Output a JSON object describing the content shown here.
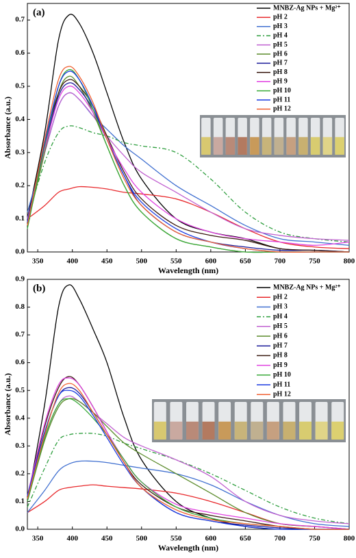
{
  "chart_data": [
    {
      "type": "line",
      "annotation": "(a)",
      "xlabel": "Wavelength (nm)",
      "ylabel": "Absorbance (a.u.)",
      "x": [
        335,
        360,
        380,
        395,
        410,
        430,
        450,
        475,
        500,
        550,
        600,
        650,
        700,
        750,
        800
      ],
      "xlim": [
        335,
        800
      ],
      "xticks": [
        350,
        400,
        450,
        500,
        550,
        600,
        650,
        700,
        750,
        800
      ],
      "ylim": [
        0,
        0.75
      ],
      "yticks": [
        {
          "value": 0,
          "label": "0.0"
        },
        0.1,
        0.2,
        0.3,
        0.4,
        0.5,
        0.6,
        0.7
      ],
      "legend": "upper right",
      "series": [
        {
          "name": "MNBZ-Ag NPs + Mg²⁺",
          "color": "#000000",
          "values": [
            0.1,
            0.36,
            0.64,
            0.715,
            0.69,
            0.6,
            0.48,
            0.33,
            0.22,
            0.1,
            0.06,
            0.04,
            0.01,
            0.005,
            0
          ]
        },
        {
          "name": "pH 2",
          "color": "#e8272a",
          "values": [
            0.1,
            0.14,
            0.18,
            0.19,
            0.197,
            0.195,
            0.19,
            0.18,
            0.175,
            0.16,
            0.12,
            0.07,
            0.03,
            0.015,
            0.01
          ]
        },
        {
          "name": "pH 3",
          "color": "#3f6fd0",
          "values": [
            0.12,
            0.3,
            0.44,
            0.48,
            0.46,
            0.41,
            0.37,
            0.32,
            0.28,
            0.2,
            0.14,
            0.08,
            0.04,
            0.03,
            0.02
          ]
        },
        {
          "name": "pH 4",
          "color": "#2e9e3e",
          "dash": "dash-dot",
          "values": [
            0.1,
            0.27,
            0.36,
            0.38,
            0.375,
            0.36,
            0.35,
            0.33,
            0.32,
            0.3,
            0.22,
            0.12,
            0.06,
            0.04,
            0.03
          ]
        },
        {
          "name": "pH 5",
          "color": "#c060d0",
          "values": [
            0.1,
            0.3,
            0.44,
            0.48,
            0.46,
            0.41,
            0.35,
            0.29,
            0.24,
            0.18,
            0.12,
            0.07,
            0.05,
            0.04,
            0.035
          ]
        },
        {
          "name": "pH 6",
          "color": "#5a8a2a",
          "values": [
            0.08,
            0.3,
            0.48,
            0.53,
            0.5,
            0.42,
            0.32,
            0.2,
            0.12,
            0.04,
            0.015,
            0,
            0,
            0,
            0
          ]
        },
        {
          "name": "pH 7",
          "color": "#1a1a9a",
          "values": [
            0.09,
            0.32,
            0.47,
            0.51,
            0.49,
            0.43,
            0.34,
            0.23,
            0.14,
            0.06,
            0.03,
            0.015,
            0.005,
            0.005,
            0
          ]
        },
        {
          "name": "pH 8",
          "color": "#3a1a10",
          "values": [
            0.09,
            0.33,
            0.48,
            0.52,
            0.5,
            0.44,
            0.35,
            0.24,
            0.16,
            0.08,
            0.05,
            0.035,
            0.01,
            0.005,
            0
          ]
        },
        {
          "name": "pH 9",
          "color": "#e040e0",
          "values": [
            0.09,
            0.31,
            0.46,
            0.5,
            0.48,
            0.42,
            0.34,
            0.25,
            0.18,
            0.1,
            0.06,
            0.04,
            0.03,
            0.02,
            0.03
          ]
        },
        {
          "name": "pH 10",
          "color": "#3aaa3a",
          "values": [
            0.07,
            0.32,
            0.5,
            0.55,
            0.52,
            0.43,
            0.32,
            0.2,
            0.12,
            0.04,
            0.015,
            0,
            0,
            0,
            0
          ]
        },
        {
          "name": "pH 11",
          "color": "#1a3ae0",
          "values": [
            0.09,
            0.33,
            0.5,
            0.545,
            0.52,
            0.44,
            0.34,
            0.23,
            0.15,
            0.07,
            0.03,
            0.01,
            0,
            0,
            0
          ]
        },
        {
          "name": "pH 12",
          "color": "#f06030",
          "values": [
            0.08,
            0.34,
            0.52,
            0.56,
            0.53,
            0.45,
            0.34,
            0.22,
            0.14,
            0.06,
            0.03,
            0.01,
            0,
            0,
            0
          ]
        }
      ]
    },
    {
      "type": "line",
      "annotation": "(b)",
      "xlabel": "Wavelength (nm)",
      "ylabel": "Absorbance (a.u.)",
      "x": [
        335,
        360,
        380,
        395,
        410,
        430,
        450,
        475,
        500,
        550,
        600,
        650,
        700,
        750,
        800
      ],
      "xlim": [
        335,
        800
      ],
      "xticks": [
        350,
        400,
        450,
        500,
        550,
        600,
        650,
        700,
        750,
        800
      ],
      "ylim": [
        0,
        0.9
      ],
      "yticks": [
        {
          "value": 0,
          "label": "0.0"
        },
        0.1,
        0.2,
        0.3,
        0.4,
        0.5,
        0.6,
        0.7,
        0.8,
        0.9
      ],
      "legend": "upper right",
      "series": [
        {
          "name": "MNBZ-Ag NPs + Mg²⁺",
          "color": "#000000",
          "values": [
            0.1,
            0.45,
            0.8,
            0.88,
            0.83,
            0.72,
            0.6,
            0.4,
            0.25,
            0.1,
            0.04,
            0.01,
            0,
            0,
            0
          ]
        },
        {
          "name": "pH 2",
          "color": "#e8272a",
          "values": [
            0.06,
            0.1,
            0.14,
            0.15,
            0.155,
            0.16,
            0.155,
            0.15,
            0.145,
            0.13,
            0.1,
            0.06,
            0.02,
            0.01,
            0
          ]
        },
        {
          "name": "pH 3",
          "color": "#3f6fd0",
          "values": [
            0.06,
            0.14,
            0.21,
            0.235,
            0.245,
            0.245,
            0.24,
            0.23,
            0.22,
            0.2,
            0.16,
            0.1,
            0.05,
            0.02,
            0.01
          ]
        },
        {
          "name": "pH 4",
          "color": "#2e9e3e",
          "dash": "dash-dot",
          "values": [
            0.08,
            0.22,
            0.32,
            0.34,
            0.345,
            0.345,
            0.335,
            0.31,
            0.29,
            0.25,
            0.2,
            0.14,
            0.08,
            0.04,
            0.02
          ]
        },
        {
          "name": "pH 5",
          "color": "#c060d0",
          "values": [
            0.1,
            0.33,
            0.45,
            0.48,
            0.46,
            0.42,
            0.38,
            0.33,
            0.3,
            0.25,
            0.19,
            0.1,
            0.05,
            0.03,
            0.02
          ]
        },
        {
          "name": "pH 6",
          "color": "#5a8a2a",
          "values": [
            0.1,
            0.32,
            0.44,
            0.47,
            0.46,
            0.42,
            0.37,
            0.31,
            0.27,
            0.2,
            0.13,
            0.06,
            0.02,
            0.01,
            0
          ]
        },
        {
          "name": "pH 7",
          "color": "#1a1a9a",
          "values": [
            0.12,
            0.35,
            0.48,
            0.51,
            0.49,
            0.42,
            0.34,
            0.24,
            0.15,
            0.06,
            0.03,
            0.015,
            0.005,
            0,
            0
          ]
        },
        {
          "name": "pH 8",
          "color": "#3a1a10",
          "values": [
            0.12,
            0.37,
            0.51,
            0.55,
            0.52,
            0.44,
            0.35,
            0.24,
            0.16,
            0.08,
            0.05,
            0.03,
            0.01,
            0,
            0
          ]
        },
        {
          "name": "pH 9",
          "color": "#e040e0",
          "values": [
            0.12,
            0.38,
            0.52,
            0.545,
            0.52,
            0.44,
            0.35,
            0.25,
            0.17,
            0.09,
            0.06,
            0.04,
            0.02,
            0.01,
            0
          ]
        },
        {
          "name": "pH 10",
          "color": "#3aaa3a",
          "values": [
            0.1,
            0.33,
            0.45,
            0.47,
            0.45,
            0.4,
            0.34,
            0.25,
            0.17,
            0.08,
            0.04,
            0.02,
            0.01,
            0,
            0
          ]
        },
        {
          "name": "pH 11",
          "color": "#1a3ae0",
          "values": [
            0.12,
            0.35,
            0.48,
            0.5,
            0.48,
            0.41,
            0.33,
            0.23,
            0.15,
            0.06,
            0.03,
            0.01,
            0,
            0,
            0
          ]
        },
        {
          "name": "pH 12",
          "color": "#f06030",
          "values": [
            0.11,
            0.34,
            0.49,
            0.525,
            0.5,
            0.42,
            0.34,
            0.24,
            0.15,
            0.07,
            0.035,
            0.02,
            0.01,
            0,
            0
          ]
        }
      ]
    }
  ]
}
